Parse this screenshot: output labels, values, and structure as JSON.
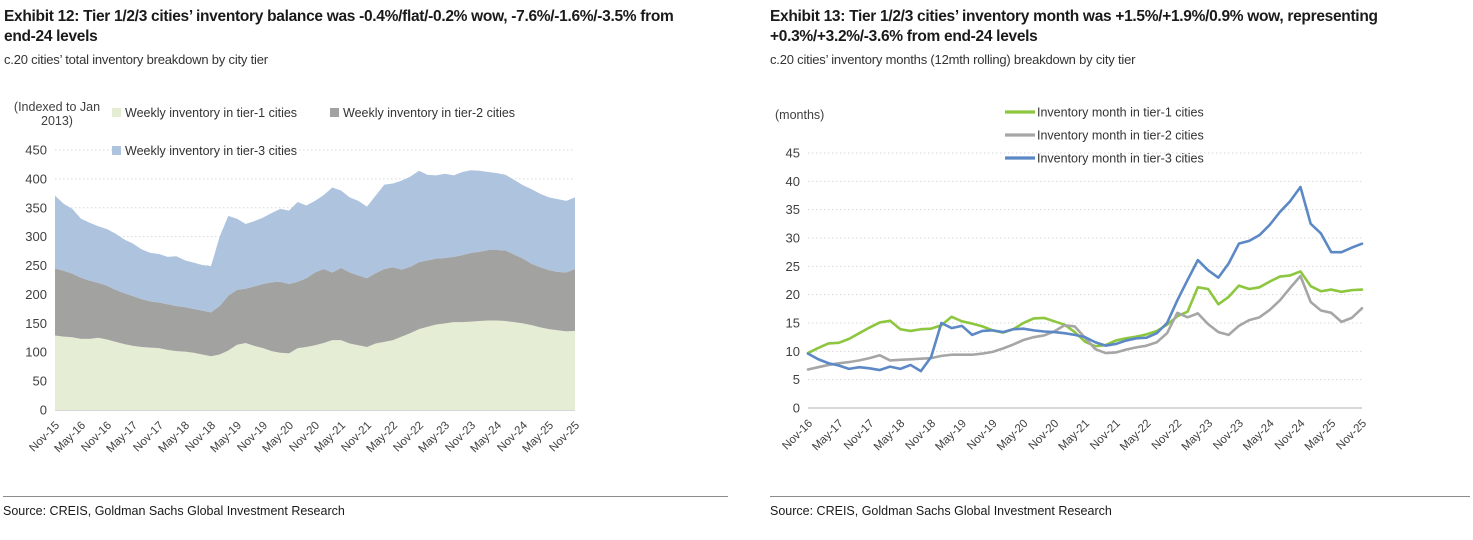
{
  "panels": [
    {
      "title": "Exhibit 12: Tier 1/2/3 cities’ inventory balance was -0.4%/flat/-0.2% wow, -7.6%/-1.6%/-3.5% from end-24 levels",
      "subtitle": "c.20 cities’ total inventory breakdown by city tier",
      "source": "Source: CREIS, Goldman Sachs Global Investment Research"
    },
    {
      "title": "Exhibit 13: Tier 1/2/3 cities’ inventory month was +1.5%/+1.9%/0.9% wow, representing +0.3%/+3.2%/-3.6% from end-24 levels",
      "subtitle": "c.20 cities’ inventory months (12mth rolling) breakdown by city tier",
      "source": "Source: CREIS, Goldman Sachs Global Investment Research"
    }
  ],
  "chart_data": [
    {
      "type": "area",
      "stacked": true,
      "unit_label_lines": [
        "(Indexed to Jan",
        "2013)"
      ],
      "ylim": [
        0,
        450
      ],
      "ytick_step": 50,
      "grid": true,
      "legend_position": "top",
      "months_total": 120,
      "months_per_point": 2,
      "x_tick_labels": [
        "Nov-15",
        "May-16",
        "Nov-16",
        "May-17",
        "Nov-17",
        "May-18",
        "Nov-18",
        "May-19",
        "Nov-19",
        "May-20",
        "Nov-20",
        "May-21",
        "Nov-21",
        "May-22",
        "Nov-22",
        "May-23",
        "Nov-23",
        "May-24",
        "Nov-24",
        "May-25",
        "Nov-25"
      ],
      "series": [
        {
          "name": "Weekly inventory in tier-1 cities",
          "color": "#e5edd5",
          "values": [
            129,
            127,
            126,
            123,
            123,
            125,
            122,
            118,
            114,
            111,
            109,
            108,
            107,
            104,
            102,
            101,
            99,
            96,
            93,
            96,
            103,
            113,
            116,
            111,
            107,
            102,
            99,
            98,
            107,
            109,
            112,
            116,
            121,
            121,
            115,
            112,
            109,
            115,
            118,
            121,
            127,
            133,
            140,
            144,
            148,
            150,
            152,
            152,
            153,
            154,
            155,
            155,
            154,
            152,
            150,
            147,
            143,
            140,
            138,
            136,
            137
          ]
        },
        {
          "name": "Weekly inventory in tier-2 cities",
          "color": "#a2a2a0",
          "values": [
            116,
            114,
            110,
            106,
            101,
            95,
            93,
            90,
            88,
            86,
            83,
            80,
            79,
            79,
            78,
            77,
            76,
            76,
            76,
            84,
            95,
            95,
            94,
            103,
            111,
            119,
            123,
            120,
            115,
            119,
            126,
            128,
            117,
            125,
            123,
            121,
            119,
            122,
            126,
            126,
            116,
            115,
            116,
            115,
            114,
            113,
            113,
            116,
            119,
            120,
            122,
            122,
            122,
            117,
            112,
            106,
            104,
            102,
            101,
            102,
            107
          ]
        },
        {
          "name": "Weekly inventory in tier-3 cities",
          "color": "#aec3de",
          "values": [
            126,
            116,
            112,
            102,
            100,
            98,
            98,
            97,
            93,
            91,
            86,
            84,
            84,
            82,
            86,
            81,
            80,
            79,
            80,
            120,
            138,
            123,
            112,
            113,
            115,
            120,
            126,
            127,
            138,
            126,
            124,
            128,
            147,
            134,
            130,
            129,
            124,
            134,
            146,
            145,
            154,
            156,
            158,
            148,
            144,
            146,
            141,
            144,
            143,
            140,
            135,
            133,
            131,
            129,
            127,
            129,
            127,
            126,
            126,
            124,
            124
          ]
        }
      ]
    },
    {
      "type": "line",
      "stacked": false,
      "unit_label_lines": [
        "(months)"
      ],
      "ylim": [
        0,
        45
      ],
      "ytick_step": 5,
      "grid": true,
      "legend_position": "top",
      "months_total": 108,
      "months_per_point": 2,
      "x_tick_labels": [
        "Nov-16",
        "May-17",
        "Nov-17",
        "May-18",
        "Nov-18",
        "May-19",
        "Nov-19",
        "May-20",
        "Nov-20",
        "May-21",
        "Nov-21",
        "May-22",
        "Nov-22",
        "May-23",
        "Nov-23",
        "May-24",
        "Nov-24",
        "May-25",
        "Nov-25"
      ],
      "series": [
        {
          "name": "Inventory month in tier-1 cities",
          "color": "#8dc63f",
          "values": [
            9.7,
            10.6,
            11.4,
            11.5,
            12.2,
            13.2,
            14.2,
            15.1,
            15.4,
            13.9,
            13.6,
            13.9,
            14.0,
            14.6,
            16.1,
            15.3,
            14.9,
            14.4,
            13.7,
            13.3,
            13.9,
            15.0,
            15.8,
            15.9,
            15.3,
            14.7,
            13.4,
            11.7,
            10.9,
            11.1,
            11.9,
            12.3,
            12.6,
            13.0,
            13.6,
            14.7,
            16.2,
            17.0,
            21.3,
            21.0,
            18.3,
            19.6,
            21.6,
            21.0,
            21.3,
            22.3,
            23.2,
            23.4,
            24.1,
            21.5,
            20.6,
            20.9,
            20.5,
            20.8,
            20.9
          ]
        },
        {
          "name": "Inventory month in tier-2 cities",
          "color": "#a6a6a6",
          "values": [
            6.8,
            7.2,
            7.6,
            7.9,
            8.1,
            8.4,
            8.8,
            9.3,
            8.4,
            8.5,
            8.6,
            8.7,
            8.8,
            9.2,
            9.4,
            9.4,
            9.4,
            9.6,
            9.9,
            10.5,
            11.2,
            12.0,
            12.5,
            12.8,
            13.5,
            14.6,
            14.4,
            12.4,
            10.4,
            9.7,
            9.8,
            10.3,
            10.7,
            11.0,
            11.6,
            13.2,
            16.8,
            16.0,
            16.7,
            14.8,
            13.4,
            12.9,
            14.5,
            15.5,
            16.0,
            17.3,
            19.0,
            21.2,
            23.3,
            18.7,
            17.2,
            16.8,
            15.2,
            15.9,
            17.6
          ]
        },
        {
          "name": "Inventory month in tier-3 cities",
          "color": "#5c88c5",
          "values": [
            9.6,
            8.6,
            7.9,
            7.5,
            6.9,
            7.2,
            7.0,
            6.7,
            7.3,
            6.9,
            7.6,
            6.5,
            9.0,
            15.0,
            14.1,
            14.5,
            12.9,
            13.6,
            13.7,
            13.4,
            13.9,
            14.0,
            13.7,
            13.5,
            13.4,
            13.2,
            12.9,
            12.5,
            11.6,
            11.0,
            11.3,
            11.9,
            12.3,
            12.4,
            13.2,
            15.0,
            19.0,
            22.6,
            26.1,
            24.3,
            23.0,
            25.5,
            29.0,
            29.5,
            30.5,
            32.3,
            34.6,
            36.5,
            39.0,
            32.5,
            30.8,
            27.5,
            27.5,
            28.3,
            29.0
          ]
        }
      ]
    }
  ],
  "style": {
    "grid_color": "#d9d9d9",
    "axis_color": "#bfbfbf",
    "tick_text_color": "#404040",
    "legend_text_color": "#333333"
  }
}
